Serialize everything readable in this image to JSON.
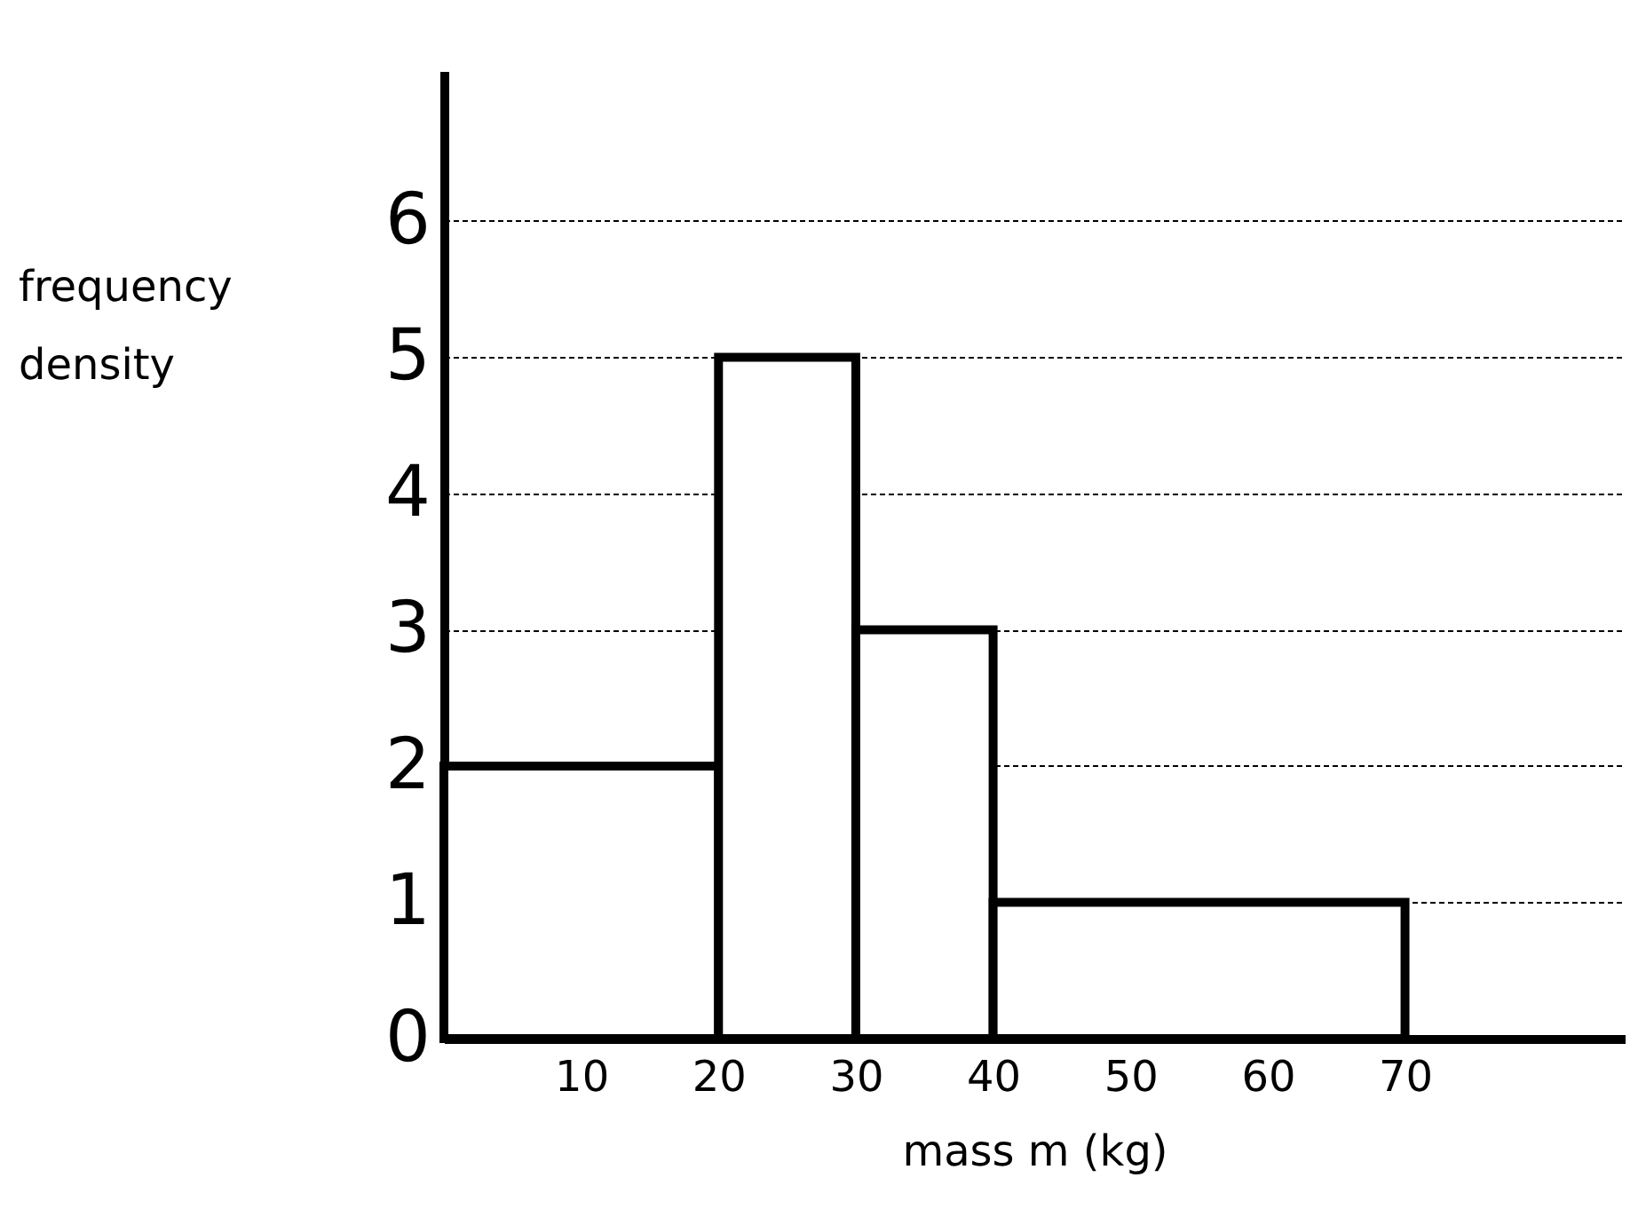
{
  "chart_data": {
    "type": "histogram",
    "xlabel": "mass m (kg)",
    "ylabel": "frequency density",
    "bins": [
      0,
      20,
      30,
      40,
      70
    ],
    "values": [
      2,
      5,
      3,
      1
    ],
    "xlim": [
      0,
      86
    ],
    "ylim": [
      0,
      7.1
    ],
    "xticks": [
      10,
      20,
      30,
      40,
      50,
      60,
      70
    ],
    "yticks": [
      0,
      1,
      2,
      3,
      4,
      5,
      6
    ],
    "grid": "y",
    "color": "#000000"
  }
}
